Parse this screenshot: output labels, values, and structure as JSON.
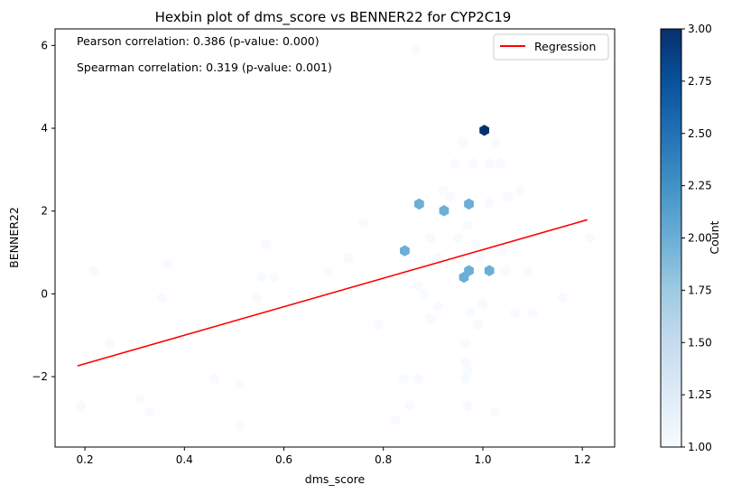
{
  "chart_data": {
    "type": "hexbin",
    "title": "Hexbin plot of dms_score vs BENNER22 for CYP2C19",
    "xlabel": "dms_score",
    "ylabel": "BENNER22",
    "xlim": [
      0.14,
      1.265
    ],
    "ylim": [
      -3.7,
      6.4
    ],
    "xticks": [
      0.2,
      0.4,
      0.6,
      0.8,
      1.0,
      1.2
    ],
    "xtick_labels": [
      "0.2",
      "0.4",
      "0.6",
      "0.8",
      "1.0",
      "1.2"
    ],
    "yticks": [
      -2,
      0,
      2,
      4,
      6
    ],
    "ytick_labels": [
      "−2",
      "0",
      "2",
      "4",
      "6"
    ],
    "annotations": [
      "Pearson correlation: 0.386 (p-value: 0.000)",
      "Spearman correlation: 0.319 (p-value: 0.001)"
    ],
    "legend": {
      "placement": "top-right",
      "entries": [
        {
          "label": "Regression",
          "color": "#ff0000"
        }
      ]
    },
    "regression": {
      "x": [
        0.185,
        1.21
      ],
      "y": [
        -1.74,
        1.79
      ],
      "color": "#ff0000"
    },
    "colorbar": {
      "label": "Count",
      "min": 1.0,
      "max": 3.0,
      "ticks": [
        1.0,
        1.25,
        1.5,
        1.75,
        2.0,
        2.25,
        2.5,
        2.75,
        3.0
      ],
      "tick_labels": [
        "1.00",
        "1.25",
        "1.50",
        "1.75",
        "2.00",
        "2.25",
        "2.50",
        "2.75",
        "3.00"
      ],
      "colormap": "Blues"
    },
    "bins": [
      {
        "x": 1.003,
        "y": 3.95,
        "count": 3
      },
      {
        "x": 0.872,
        "y": 2.17,
        "count": 2
      },
      {
        "x": 0.922,
        "y": 2.01,
        "count": 2
      },
      {
        "x": 0.972,
        "y": 2.17,
        "count": 2
      },
      {
        "x": 0.843,
        "y": 1.04,
        "count": 2
      },
      {
        "x": 0.972,
        "y": 0.56,
        "count": 2
      },
      {
        "x": 1.013,
        "y": 0.56,
        "count": 2
      },
      {
        "x": 0.962,
        "y": 0.4,
        "count": 2
      },
      {
        "x": 0.192,
        "y": -2.72,
        "count": 1
      },
      {
        "x": 0.218,
        "y": 0.55,
        "count": 1
      },
      {
        "x": 0.25,
        "y": -1.2,
        "count": 1
      },
      {
        "x": 0.31,
        "y": -2.55,
        "count": 1
      },
      {
        "x": 0.33,
        "y": -2.85,
        "count": 1
      },
      {
        "x": 0.355,
        "y": -0.1,
        "count": 1
      },
      {
        "x": 0.365,
        "y": 0.72,
        "count": 1
      },
      {
        "x": 0.46,
        "y": -2.05,
        "count": 1
      },
      {
        "x": 0.51,
        "y": -2.2,
        "count": 1
      },
      {
        "x": 0.512,
        "y": -3.2,
        "count": 1
      },
      {
        "x": 0.545,
        "y": -0.1,
        "count": 1
      },
      {
        "x": 0.555,
        "y": 0.4,
        "count": 1
      },
      {
        "x": 0.58,
        "y": 0.4,
        "count": 1
      },
      {
        "x": 0.565,
        "y": 1.2,
        "count": 1
      },
      {
        "x": 0.69,
        "y": 0.55,
        "count": 1
      },
      {
        "x": 0.73,
        "y": 0.87,
        "count": 1
      },
      {
        "x": 0.76,
        "y": 1.7,
        "count": 1
      },
      {
        "x": 0.79,
        "y": -0.75,
        "count": 1
      },
      {
        "x": 0.825,
        "y": -3.05,
        "count": 1
      },
      {
        "x": 0.84,
        "y": -2.05,
        "count": 1
      },
      {
        "x": 0.853,
        "y": -2.7,
        "count": 1
      },
      {
        "x": 0.87,
        "y": -2.05,
        "count": 1
      },
      {
        "x": 0.865,
        "y": 5.9,
        "count": 1
      },
      {
        "x": 0.87,
        "y": 0.2,
        "count": 1
      },
      {
        "x": 0.882,
        "y": 0.0,
        "count": 1
      },
      {
        "x": 0.895,
        "y": 1.35,
        "count": 1
      },
      {
        "x": 0.91,
        "y": 0.87,
        "count": 1
      },
      {
        "x": 0.895,
        "y": -0.6,
        "count": 1
      },
      {
        "x": 0.91,
        "y": -0.3,
        "count": 1
      },
      {
        "x": 0.92,
        "y": 2.5,
        "count": 1
      },
      {
        "x": 0.935,
        "y": 2.35,
        "count": 1
      },
      {
        "x": 0.945,
        "y": 3.15,
        "count": 1
      },
      {
        "x": 0.95,
        "y": 1.35,
        "count": 1
      },
      {
        "x": 0.96,
        "y": 3.65,
        "count": 1
      },
      {
        "x": 0.965,
        "y": -1.2,
        "count": 1
      },
      {
        "x": 0.965,
        "y": -1.65,
        "count": 1
      },
      {
        "x": 0.97,
        "y": -1.85,
        "count": 1
      },
      {
        "x": 0.965,
        "y": -2.05,
        "count": 1
      },
      {
        "x": 0.97,
        "y": -2.7,
        "count": 1
      },
      {
        "x": 0.975,
        "y": -0.45,
        "count": 1
      },
      {
        "x": 0.97,
        "y": 1.65,
        "count": 1
      },
      {
        "x": 0.98,
        "y": 3.15,
        "count": 1
      },
      {
        "x": 0.985,
        "y": 1.2,
        "count": 1
      },
      {
        "x": 0.99,
        "y": -0.75,
        "count": 1
      },
      {
        "x": 0.995,
        "y": 0.87,
        "count": 1
      },
      {
        "x": 1.0,
        "y": -0.25,
        "count": 1
      },
      {
        "x": 1.013,
        "y": 2.2,
        "count": 1
      },
      {
        "x": 1.015,
        "y": 3.15,
        "count": 1
      },
      {
        "x": 1.025,
        "y": 3.65,
        "count": 1
      },
      {
        "x": 1.025,
        "y": -2.85,
        "count": 1
      },
      {
        "x": 1.035,
        "y": 3.15,
        "count": 1
      },
      {
        "x": 1.04,
        "y": 1.04,
        "count": 1
      },
      {
        "x": 1.045,
        "y": 0.55,
        "count": 1
      },
      {
        "x": 1.05,
        "y": 2.35,
        "count": 1
      },
      {
        "x": 1.065,
        "y": -0.45,
        "count": 1
      },
      {
        "x": 1.075,
        "y": 2.5,
        "count": 1
      },
      {
        "x": 1.09,
        "y": 0.55,
        "count": 1
      },
      {
        "x": 1.1,
        "y": -0.45,
        "count": 1
      },
      {
        "x": 1.16,
        "y": -0.1,
        "count": 1
      },
      {
        "x": 1.215,
        "y": 1.35,
        "count": 1
      }
    ]
  }
}
